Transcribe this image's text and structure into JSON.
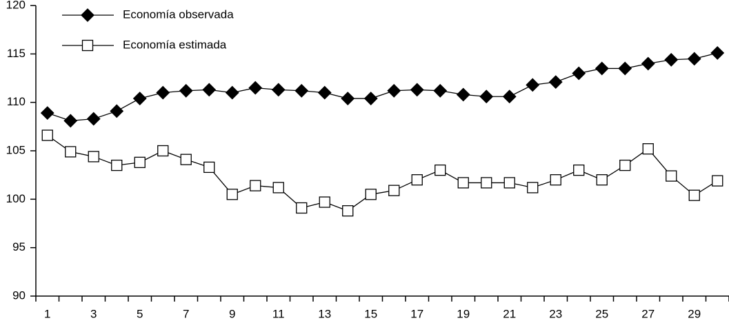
{
  "chart_data": {
    "type": "line",
    "categories": [
      "1",
      null,
      "3",
      null,
      "5",
      null,
      "7",
      null,
      "9",
      null,
      "11",
      null,
      "13",
      null,
      "15",
      null,
      "17",
      null,
      "19",
      null,
      "21",
      null,
      "23",
      null,
      "25",
      null,
      "27",
      null,
      "29",
      null
    ],
    "series": [
      {
        "name": "Economía observada",
        "color": "#000000",
        "marker": "diamond",
        "values": [
          108.9,
          108.1,
          108.3,
          109.1,
          110.4,
          111.0,
          111.2,
          111.3,
          111.0,
          111.5,
          111.3,
          111.2,
          111.0,
          110.4,
          110.4,
          111.2,
          111.3,
          111.2,
          110.8,
          110.6,
          110.6,
          111.8,
          112.1,
          113.0,
          113.5,
          113.5,
          114.0,
          114.4,
          114.5,
          115.1
        ]
      },
      {
        "name": "Economía estimada",
        "color": "#000000",
        "marker": "square",
        "values": [
          106.6,
          104.9,
          104.4,
          103.5,
          103.8,
          105.0,
          104.1,
          103.3,
          100.5,
          101.4,
          101.2,
          99.1,
          99.7,
          98.8,
          100.5,
          100.9,
          102.0,
          103.0,
          101.7,
          101.7,
          101.7,
          101.2,
          102.0,
          103.0,
          102.0,
          103.5,
          105.2,
          102.4,
          100.4,
          101.9
        ]
      }
    ],
    "ylim": [
      90,
      120
    ],
    "yticks": [
      90,
      95,
      100,
      105,
      110,
      115,
      120
    ],
    "grid": false,
    "legend": "upper left"
  }
}
